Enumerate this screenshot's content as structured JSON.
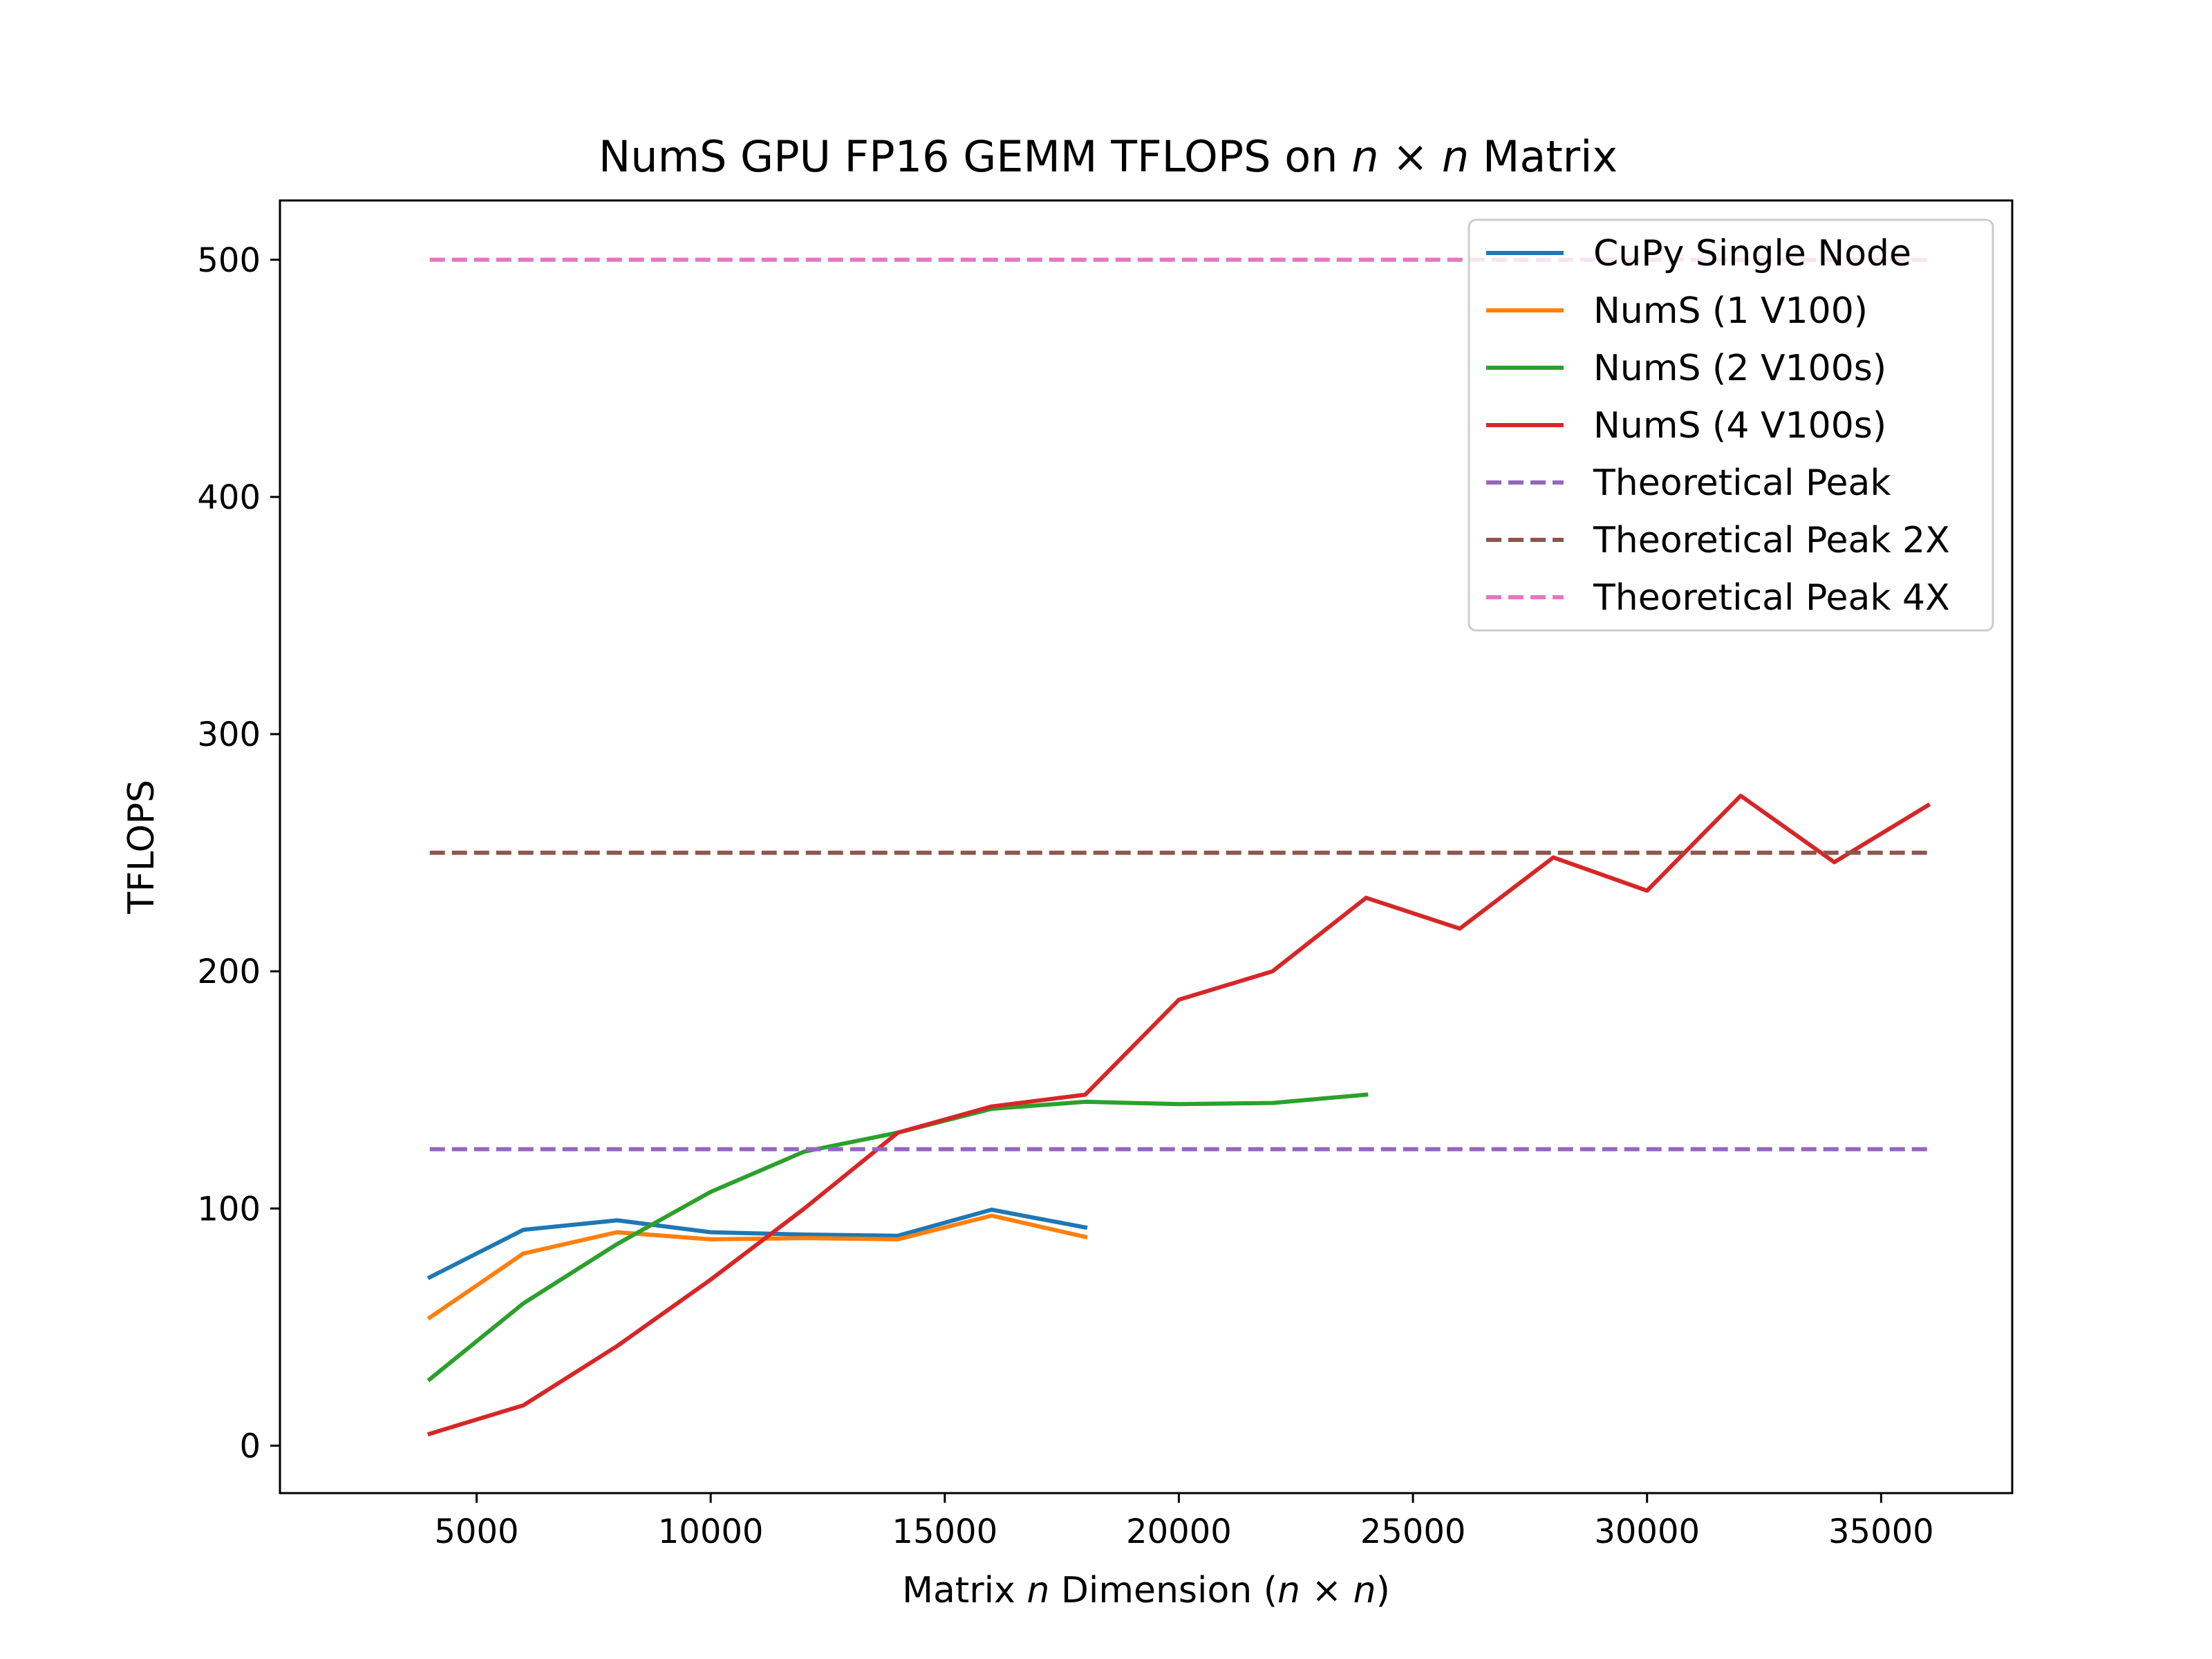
{
  "chart_data": {
    "type": "line",
    "title": {
      "prefix": "NumS GPU FP16 GEMM TFLOPS  on ",
      "math_a": "n",
      "times": " × ",
      "math_b": "n",
      "suffix": " Matrix"
    },
    "xlabel": {
      "prefix": "Matrix ",
      "math_a": "n",
      "middle": " Dimension (",
      "math_b": "n",
      "times": " × ",
      "math_c": "n",
      "suffix": ")"
    },
    "ylabel": "TFLOPS",
    "xlim": [
      800,
      37800
    ],
    "ylim": [
      -20,
      525
    ],
    "xticks": [
      5000,
      10000,
      15000,
      20000,
      25000,
      30000,
      35000
    ],
    "yticks": [
      0,
      100,
      200,
      300,
      400,
      500
    ],
    "xtick_labels": [
      "5000",
      "10000",
      "15000",
      "20000",
      "25000",
      "30000",
      "35000"
    ],
    "ytick_labels": [
      "0",
      "100",
      "200",
      "300",
      "400",
      "500"
    ],
    "legend_position": "upper right",
    "grid": false,
    "series": [
      {
        "name": "CuPy Single Node",
        "color": "#1f77b4",
        "style": "solid",
        "x": [
          4000,
          6000,
          8000,
          10000,
          12000,
          14000,
          16000,
          18000
        ],
        "y": [
          71,
          91,
          95,
          90,
          89,
          88.5,
          99.5,
          92
        ]
      },
      {
        "name": "NumS (1 V100)",
        "color": "#ff7f0e",
        "style": "solid",
        "x": [
          4000,
          6000,
          8000,
          10000,
          12000,
          14000,
          16000,
          18000
        ],
        "y": [
          54,
          81,
          90,
          87,
          87.5,
          87,
          97,
          88
        ]
      },
      {
        "name": "NumS (2 V100s)",
        "color": "#2ca02c",
        "style": "solid",
        "x": [
          4000,
          6000,
          8000,
          10000,
          12000,
          14000,
          16000,
          18000,
          20000,
          22000,
          24000
        ],
        "y": [
          28,
          60,
          85,
          107,
          124,
          132,
          142,
          145,
          144,
          144.5,
          148
        ]
      },
      {
        "name": "NumS (4 V100s)",
        "color": "#d62728",
        "style": "solid",
        "x": [
          4000,
          6000,
          8000,
          10000,
          12000,
          14000,
          16000,
          18000,
          20000,
          22000,
          24000,
          26000,
          28000,
          30000,
          32000,
          34000,
          36000
        ],
        "y": [
          5,
          17,
          42,
          70,
          100,
          132,
          143,
          148,
          188,
          200,
          231,
          218,
          248,
          234,
          274,
          246,
          270
        ]
      },
      {
        "name": "Theoretical Peak",
        "color": "#9467bd",
        "style": "dashed",
        "x": [
          4000,
          36000
        ],
        "y": [
          125,
          125
        ]
      },
      {
        "name": "Theoretical Peak 2X",
        "color": "#8c564b",
        "style": "dashed",
        "x": [
          4000,
          36000
        ],
        "y": [
          250,
          250
        ]
      },
      {
        "name": "Theoretical Peak 4X",
        "color": "#e377c2",
        "style": "dashed",
        "x": [
          4000,
          36000
        ],
        "y": [
          500,
          500
        ]
      }
    ]
  }
}
